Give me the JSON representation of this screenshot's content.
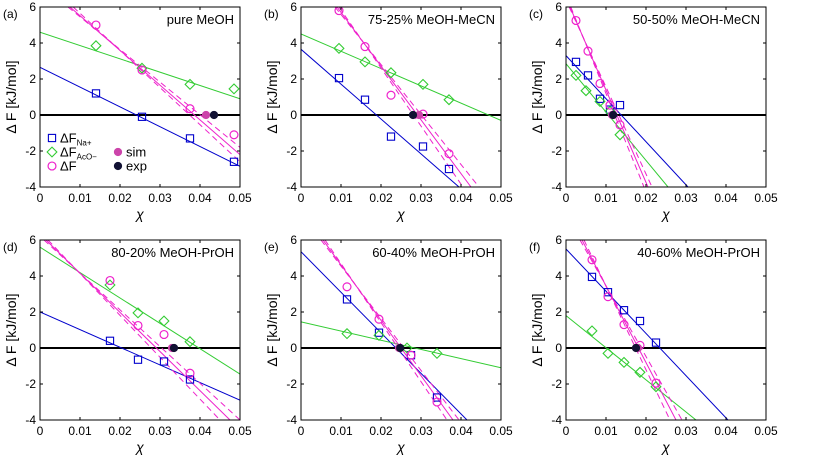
{
  "colors": {
    "na": "#0000cc",
    "aco": "#33cc33",
    "f": "#ee22cc",
    "sim": "#cc44aa",
    "exp": "#111133"
  },
  "legend": [
    {
      "symbol": "square",
      "base": "ΔF",
      "sub": "Na+",
      "color": "#0000cc"
    },
    {
      "symbol": "diamond",
      "base": "ΔF",
      "sub": "AcO−",
      "color": "#33cc33"
    },
    {
      "symbol": "circle",
      "base": "ΔF",
      "sub": "",
      "color": "#ee22cc"
    },
    {
      "symbol": "filled-circle",
      "base": "sim",
      "sub": "",
      "color": "#cc44aa"
    },
    {
      "symbol": "filled-circle",
      "base": "exp",
      "sub": "",
      "color": "#111133"
    }
  ],
  "chart_data": [
    {
      "type": "scatter",
      "panel": "(a)",
      "title": "pure MeOH",
      "xlabel": "χ",
      "ylabel": "Δ F [kJ/mol]",
      "xlim": [
        0,
        0.05
      ],
      "ylim": [
        -4,
        6
      ],
      "xticks": [
        "0",
        "0.01",
        "0.02",
        "0.03",
        "0.04",
        "0.05"
      ],
      "yticks": [
        "-4",
        "-2",
        "0",
        "2",
        "4",
        "6"
      ],
      "series": [
        {
          "marker": "square",
          "color": "#0000cc",
          "points": [
            [
              0.014,
              1.2
            ],
            [
              0.0255,
              -0.1
            ],
            [
              0.0375,
              -1.3
            ],
            [
              0.0485,
              -2.6
            ]
          ],
          "fit": [
            [
              0,
              2.65
            ],
            [
              0.05,
              -2.85
            ]
          ]
        },
        {
          "marker": "diamond",
          "color": "#33cc33",
          "points": [
            [
              0.014,
              3.85
            ],
            [
              0.0255,
              2.6
            ],
            [
              0.0375,
              1.7
            ],
            [
              0.0485,
              1.45
            ]
          ],
          "fit": [
            [
              0,
              4.6
            ],
            [
              0.05,
              0.9
            ]
          ]
        },
        {
          "marker": "circle",
          "color": "#ee22cc",
          "points": [
            [
              0.014,
              5.0
            ],
            [
              0.0255,
              2.5
            ],
            [
              0.0375,
              0.35
            ],
            [
              0.0485,
              -1.1
            ]
          ],
          "fit": [
            [
              0.0075,
              6
            ],
            [
              0.05,
              -2.2
            ]
          ],
          "band": [
            [
              [
                0.007,
                6
              ],
              [
                0.05,
                -1.8
              ]
            ],
            [
              [
                0.0083,
                6
              ],
              [
                0.05,
                -2.6
              ]
            ]
          ]
        }
      ],
      "sim": [
        0.0415,
        0
      ],
      "exp": [
        0.0435,
        0
      ]
    },
    {
      "type": "scatter",
      "panel": "(b)",
      "title": "75-25% MeOH-MeCN",
      "xlabel": "χ",
      "ylabel": "Δ F [kJ/mol]",
      "xlim": [
        0,
        0.05
      ],
      "ylim": [
        -4,
        6
      ],
      "xticks": [
        "0",
        "0.01",
        "0.02",
        "0.03",
        "0.04",
        "0.05"
      ],
      "yticks": [
        "-4",
        "-2",
        "0",
        "2",
        "4",
        "6"
      ],
      "series": [
        {
          "marker": "square",
          "color": "#0000cc",
          "points": [
            [
              0.0095,
              2.05
            ],
            [
              0.016,
              0.85
            ],
            [
              0.0225,
              -1.2
            ],
            [
              0.0305,
              -1.75
            ],
            [
              0.037,
              -3.0
            ]
          ],
          "fit": [
            [
              0,
              3.65
            ],
            [
              0.0395,
              -4
            ]
          ]
        },
        {
          "marker": "diamond",
          "color": "#33cc33",
          "points": [
            [
              0.0095,
              3.7
            ],
            [
              0.016,
              2.95
            ],
            [
              0.0225,
              2.35
            ],
            [
              0.0305,
              1.7
            ],
            [
              0.037,
              0.85
            ]
          ],
          "fit": [
            [
              0,
              4.5
            ],
            [
              0.05,
              -0.3
            ]
          ]
        },
        {
          "marker": "circle",
          "color": "#ee22cc",
          "points": [
            [
              0.0095,
              5.8
            ],
            [
              0.016,
              3.8
            ],
            [
              0.0225,
              1.1
            ],
            [
              0.0305,
              0.05
            ],
            [
              0.037,
              -2.15
            ]
          ],
          "fit": [
            [
              0.009,
              6
            ],
            [
              0.0425,
              -4
            ]
          ],
          "band": [
            [
              [
                0.0085,
                6
              ],
              [
                0.0445,
                -4
              ]
            ],
            [
              [
                0.0095,
                6
              ],
              [
                0.0405,
                -4
              ]
            ]
          ]
        }
      ],
      "sim": [
        0.0295,
        0
      ],
      "exp": [
        0.028,
        0
      ]
    },
    {
      "type": "scatter",
      "panel": "(c)",
      "title": "50-50% MeOH-MeCN",
      "xlabel": "χ",
      "ylabel": "Δ F [kJ/mol]",
      "xlim": [
        0,
        0.05
      ],
      "ylim": [
        -4,
        6
      ],
      "xticks": [
        "0",
        "0.01",
        "0.02",
        "0.03",
        "0.04",
        "0.05"
      ],
      "yticks": [
        "-4",
        "-2",
        "0",
        "2",
        "4",
        "6"
      ],
      "series": [
        {
          "marker": "square",
          "color": "#0000cc",
          "points": [
            [
              0.0025,
              2.95
            ],
            [
              0.0055,
              2.2
            ],
            [
              0.0085,
              0.9
            ],
            [
              0.011,
              0.3
            ],
            [
              0.0135,
              0.55
            ]
          ],
          "fit": [
            [
              0,
              3.3
            ],
            [
              0.0305,
              -4
            ]
          ]
        },
        {
          "marker": "diamond",
          "color": "#33cc33",
          "points": [
            [
              0.0025,
              2.2
            ],
            [
              0.005,
              1.35
            ],
            [
              0.0085,
              0.75
            ],
            [
              0.011,
              0.2
            ],
            [
              0.0135,
              -1.1
            ]
          ],
          "fit": [
            [
              0,
              2.85
            ],
            [
              0.0255,
              -4
            ]
          ]
        },
        {
          "marker": "circle",
          "color": "#ee22cc",
          "points": [
            [
              0.0025,
              5.25
            ],
            [
              0.0055,
              3.55
            ],
            [
              0.0085,
              1.75
            ],
            [
              0.011,
              0.55
            ],
            [
              0.0135,
              -0.55
            ]
          ],
          "fit": [
            [
              0.001,
              6
            ],
            [
              0.0205,
              -4
            ]
          ],
          "band": [
            [
              [
                0.0008,
                6
              ],
              [
                0.0215,
                -4
              ]
            ],
            [
              [
                0.0012,
                6
              ],
              [
                0.0195,
                -4
              ]
            ]
          ]
        }
      ],
      "sim": [
        0.0115,
        0
      ],
      "exp": [
        0.0118,
        0
      ]
    },
    {
      "type": "scatter",
      "panel": "(d)",
      "title": "80-20% MeOH-PrOH",
      "xlabel": "χ",
      "ylabel": "Δ F [kJ/mol]",
      "xlim": [
        0,
        0.05
      ],
      "ylim": [
        -4,
        6
      ],
      "xticks": [
        "0",
        "0.01",
        "0.02",
        "0.03",
        "0.04",
        "0.05"
      ],
      "yticks": [
        "-4",
        "-2",
        "0",
        "2",
        "4",
        "6"
      ],
      "series": [
        {
          "marker": "square",
          "color": "#0000cc",
          "points": [
            [
              0.0175,
              0.4
            ],
            [
              0.0245,
              -0.65
            ],
            [
              0.031,
              -0.75
            ],
            [
              0.0375,
              -1.75
            ]
          ],
          "fit": [
            [
              0,
              2.0
            ],
            [
              0.05,
              -2.9
            ]
          ]
        },
        {
          "marker": "diamond",
          "color": "#33cc33",
          "points": [
            [
              0.0175,
              3.5
            ],
            [
              0.0245,
              1.95
            ],
            [
              0.031,
              1.5
            ],
            [
              0.0375,
              0.35
            ]
          ],
          "fit": [
            [
              0,
              5.6
            ],
            [
              0.05,
              -1.45
            ]
          ]
        },
        {
          "marker": "circle",
          "color": "#ee22cc",
          "points": [
            [
              0.0175,
              3.75
            ],
            [
              0.0245,
              1.25
            ],
            [
              0.031,
              0.75
            ],
            [
              0.0375,
              -1.4
            ]
          ],
          "fit": [
            [
              0.0015,
              6
            ],
            [
              0.0475,
              -4
            ]
          ],
          "band": [
            [
              [
                0.001,
                6
              ],
              [
                0.05,
                -4
              ]
            ],
            [
              [
                0.002,
                6
              ],
              [
                0.045,
                -4
              ]
            ]
          ]
        }
      ],
      "sim": [
        0.033,
        0
      ],
      "exp": [
        0.0335,
        0
      ]
    },
    {
      "type": "scatter",
      "panel": "(e)",
      "title": "60-40% MeOH-PrOH",
      "xlabel": "χ",
      "ylabel": "Δ F [kJ/mol]",
      "xlim": [
        0,
        0.05
      ],
      "ylim": [
        -4,
        6
      ],
      "xticks": [
        "0",
        "0.01",
        "0.02",
        "0.03",
        "0.04",
        "0.05"
      ],
      "yticks": [
        "-4",
        "-2",
        "0",
        "2",
        "4",
        "6"
      ],
      "series": [
        {
          "marker": "square",
          "color": "#0000cc",
          "points": [
            [
              0.0115,
              2.7
            ],
            [
              0.0195,
              0.85
            ],
            [
              0.0275,
              -0.4
            ],
            [
              0.034,
              -2.75
            ]
          ],
          "fit": [
            [
              0,
              5.35
            ],
            [
              0.0415,
              -4
            ]
          ]
        },
        {
          "marker": "diamond",
          "color": "#33cc33",
          "points": [
            [
              0.0115,
              0.8
            ],
            [
              0.0195,
              0.7
            ],
            [
              0.0265,
              0.0
            ],
            [
              0.034,
              -0.3
            ]
          ],
          "fit": [
            [
              0,
              1.45
            ],
            [
              0.05,
              -1.1
            ]
          ]
        },
        {
          "marker": "circle",
          "color": "#ee22cc",
          "points": [
            [
              0.0115,
              3.4
            ],
            [
              0.0195,
              1.6
            ],
            [
              0.0275,
              -0.4
            ],
            [
              0.034,
              -3.0
            ]
          ],
          "fit": [
            [
              0.0055,
              6
            ],
            [
              0.038,
              -4
            ]
          ],
          "band": [
            [
              [
                0.005,
                6
              ],
              [
                0.0395,
                -4
              ]
            ],
            [
              [
                0.006,
                6
              ],
              [
                0.0365,
                -4
              ]
            ]
          ]
        }
      ],
      "sim": [
        0.0245,
        0
      ],
      "exp": [
        0.0248,
        0
      ]
    },
    {
      "type": "scatter",
      "panel": "(f)",
      "title": "40-60% MeOH-PrOH",
      "xlabel": "χ",
      "ylabel": "Δ F [kJ/mol]",
      "xlim": [
        0,
        0.05
      ],
      "ylim": [
        -4,
        6
      ],
      "xticks": [
        "0",
        "0.01",
        "0.02",
        "0.03",
        "0.04",
        "0.05"
      ],
      "yticks": [
        "-4",
        "-2",
        "0",
        "2",
        "4",
        "6"
      ],
      "series": [
        {
          "marker": "square",
          "color": "#0000cc",
          "points": [
            [
              0.0065,
              3.95
            ],
            [
              0.0105,
              3.1
            ],
            [
              0.0145,
              2.1
            ],
            [
              0.0185,
              1.5
            ],
            [
              0.0225,
              0.3
            ]
          ],
          "fit": [
            [
              0,
              5.5
            ],
            [
              0.0405,
              -4
            ]
          ]
        },
        {
          "marker": "diamond",
          "color": "#33cc33",
          "points": [
            [
              0.0065,
              0.95
            ],
            [
              0.0105,
              -0.3
            ],
            [
              0.0145,
              -0.8
            ],
            [
              0.0185,
              -1.35
            ],
            [
              0.0225,
              -2.15
            ]
          ],
          "fit": [
            [
              0,
              1.8
            ],
            [
              0.0325,
              -4
            ]
          ]
        },
        {
          "marker": "circle",
          "color": "#ee22cc",
          "points": [
            [
              0.0065,
              4.9
            ],
            [
              0.0105,
              2.85
            ],
            [
              0.0145,
              1.3
            ],
            [
              0.0185,
              0.15
            ],
            [
              0.0225,
              -1.95
            ]
          ],
          "fit": [
            [
              0.004,
              6
            ],
            [
              0.0275,
              -4
            ]
          ],
          "band": [
            [
              [
                0.0035,
                6
              ],
              [
                0.029,
                -4
              ]
            ],
            [
              [
                0.0045,
                6
              ],
              [
                0.026,
                -4
              ]
            ]
          ]
        }
      ],
      "sim": [
        0.018,
        0
      ],
      "exp": [
        0.0175,
        0
      ]
    }
  ]
}
